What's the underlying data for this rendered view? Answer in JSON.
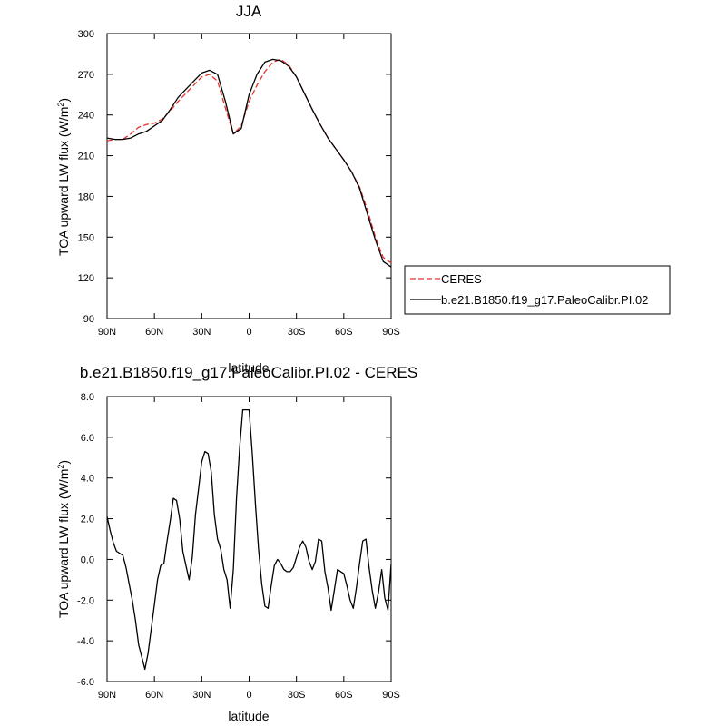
{
  "chart_data": [
    {
      "type": "line",
      "title": "JJA",
      "xlabel": "latitude",
      "ylabel": "TOA upward LW flux (W/m",
      "ylabel_sup": "2",
      "ylabel_close": ")",
      "xlim": [
        90,
        -90
      ],
      "ylim": [
        90,
        300
      ],
      "xticks": [
        {
          "value": 90,
          "label": "90N"
        },
        {
          "value": 60,
          "label": "60N"
        },
        {
          "value": 30,
          "label": "30N"
        },
        {
          "value": 0,
          "label": "0"
        },
        {
          "value": -30,
          "label": "30S"
        },
        {
          "value": -60,
          "label": "60S"
        },
        {
          "value": -90,
          "label": "90S"
        }
      ],
      "yticks": [
        {
          "value": 90,
          "label": "90"
        },
        {
          "value": 120,
          "label": "120"
        },
        {
          "value": 150,
          "label": "150"
        },
        {
          "value": 180,
          "label": "180"
        },
        {
          "value": 210,
          "label": "210"
        },
        {
          "value": 240,
          "label": "240"
        },
        {
          "value": 270,
          "label": "270"
        },
        {
          "value": 300,
          "label": "300"
        }
      ],
      "grid": false,
      "legend_position": "right",
      "series": [
        {
          "name": "CERES",
          "color": "#e8322d",
          "dash": true,
          "x": [
            90,
            85,
            80,
            75,
            70,
            65,
            60,
            55,
            50,
            45,
            40,
            35,
            30,
            25,
            20,
            15,
            10,
            5,
            0,
            -5,
            -10,
            -15,
            -20,
            -25,
            -30,
            -35,
            -40,
            -45,
            -50,
            -55,
            -60,
            -65,
            -70,
            -75,
            -80,
            -85,
            -90
          ],
          "y": [
            221,
            222,
            222,
            226,
            231,
            233,
            234,
            237,
            243,
            250,
            256,
            262,
            268,
            270,
            265,
            245,
            226,
            232,
            250,
            262,
            272,
            279,
            281,
            277,
            268,
            256,
            244,
            233,
            223,
            215,
            207,
            198,
            187,
            170,
            150,
            135,
            131
          ]
        },
        {
          "name": "b.e21.B1850.f19_g17.PaleoCalibr.PI.02",
          "color": "#000000",
          "dash": false,
          "x": [
            90,
            85,
            80,
            75,
            70,
            65,
            60,
            55,
            50,
            45,
            40,
            35,
            30,
            25,
            20,
            15,
            10,
            5,
            0,
            -5,
            -10,
            -15,
            -20,
            -25,
            -30,
            -35,
            -40,
            -45,
            -50,
            -55,
            -60,
            -65,
            -70,
            -75,
            -80,
            -85,
            -90
          ],
          "y": [
            223,
            222,
            222,
            223,
            226,
            228,
            232,
            236,
            244,
            253,
            259,
            265,
            271,
            273,
            270,
            250,
            226,
            230,
            255,
            270,
            279,
            281,
            280,
            276,
            268,
            256,
            244,
            233,
            223,
            215,
            207,
            198,
            186,
            167,
            148,
            132,
            128
          ]
        }
      ]
    },
    {
      "type": "line",
      "title": "b.e21.B1850.f19_g17.PaleoCalibr.PI.02 - CERES",
      "xlabel": "latitude",
      "ylabel": "TOA upward LW flux (W/m",
      "ylabel_sup": "2",
      "ylabel_close": ")",
      "xlim": [
        90,
        -90
      ],
      "ylim": [
        -6.0,
        8.0
      ],
      "xticks": [
        {
          "value": 90,
          "label": "90N"
        },
        {
          "value": 60,
          "label": "60N"
        },
        {
          "value": 30,
          "label": "30N"
        },
        {
          "value": 0,
          "label": "0"
        },
        {
          "value": -30,
          "label": "30S"
        },
        {
          "value": -60,
          "label": "60S"
        },
        {
          "value": -90,
          "label": "90S"
        }
      ],
      "yticks": [
        {
          "value": -6.0,
          "label": "-6.0"
        },
        {
          "value": -4.0,
          "label": "-4.0"
        },
        {
          "value": -2.0,
          "label": "-2.0"
        },
        {
          "value": 0.0,
          "label": "0.0"
        },
        {
          "value": 2.0,
          "label": "2.0"
        },
        {
          "value": 4.0,
          "label": "4.0"
        },
        {
          "value": 6.0,
          "label": "6.0"
        },
        {
          "value": 8.0,
          "label": "8.0"
        }
      ],
      "grid": false,
      "series": [
        {
          "name": "",
          "color": "#000000",
          "dash": false,
          "x": [
            90,
            88,
            86,
            84,
            82,
            80,
            78,
            76,
            74,
            72,
            70,
            68,
            66,
            64,
            62,
            60,
            58,
            56,
            54,
            52,
            50,
            48,
            46,
            44,
            42,
            40,
            38,
            36,
            34,
            32,
            30,
            28,
            26,
            24,
            22,
            20,
            18,
            16,
            14,
            12,
            10,
            8,
            6,
            4,
            2,
            0,
            -2,
            -4,
            -6,
            -8,
            -10,
            -12,
            -14,
            -16,
            -18,
            -20,
            -22,
            -24,
            -26,
            -28,
            -30,
            -32,
            -34,
            -36,
            -38,
            -40,
            -42,
            -44,
            -46,
            -48,
            -50,
            -52,
            -54,
            -56,
            -58,
            -60,
            -62,
            -64,
            -66,
            -68,
            -70,
            -72,
            -74,
            -76,
            -78,
            -80,
            -82,
            -84,
            -86,
            -88,
            -90
          ],
          "y": [
            2.1,
            1.4,
            0.8,
            0.4,
            0.3,
            0.2,
            -0.4,
            -1.2,
            -2.0,
            -3.0,
            -4.2,
            -4.8,
            -5.4,
            -4.6,
            -3.4,
            -2.2,
            -1.0,
            -0.3,
            -0.2,
            0.9,
            1.9,
            3.0,
            2.9,
            2.0,
            0.4,
            -0.3,
            -1.0,
            0.1,
            2.2,
            3.5,
            4.8,
            5.3,
            5.2,
            4.3,
            2.2,
            1.0,
            0.5,
            -0.5,
            -1.0,
            -2.4,
            -0.5,
            3.0,
            5.5,
            7.35,
            7.35,
            7.35,
            5.2,
            2.7,
            0.5,
            -1.2,
            -2.3,
            -2.4,
            -1.3,
            -0.3,
            0.0,
            -0.2,
            -0.5,
            -0.6,
            -0.6,
            -0.4,
            0.1,
            0.6,
            0.9,
            0.6,
            -0.1,
            -0.5,
            -0.1,
            1.0,
            0.9,
            -0.6,
            -1.4,
            -2.5,
            -1.5,
            -0.5,
            -0.6,
            -0.7,
            -1.3,
            -2.0,
            -2.4,
            -1.4,
            -0.2,
            0.9,
            1.0,
            -0.4,
            -1.5,
            -2.4,
            -1.6,
            -0.5,
            -1.9,
            -2.5,
            -0.2
          ]
        }
      ]
    }
  ]
}
